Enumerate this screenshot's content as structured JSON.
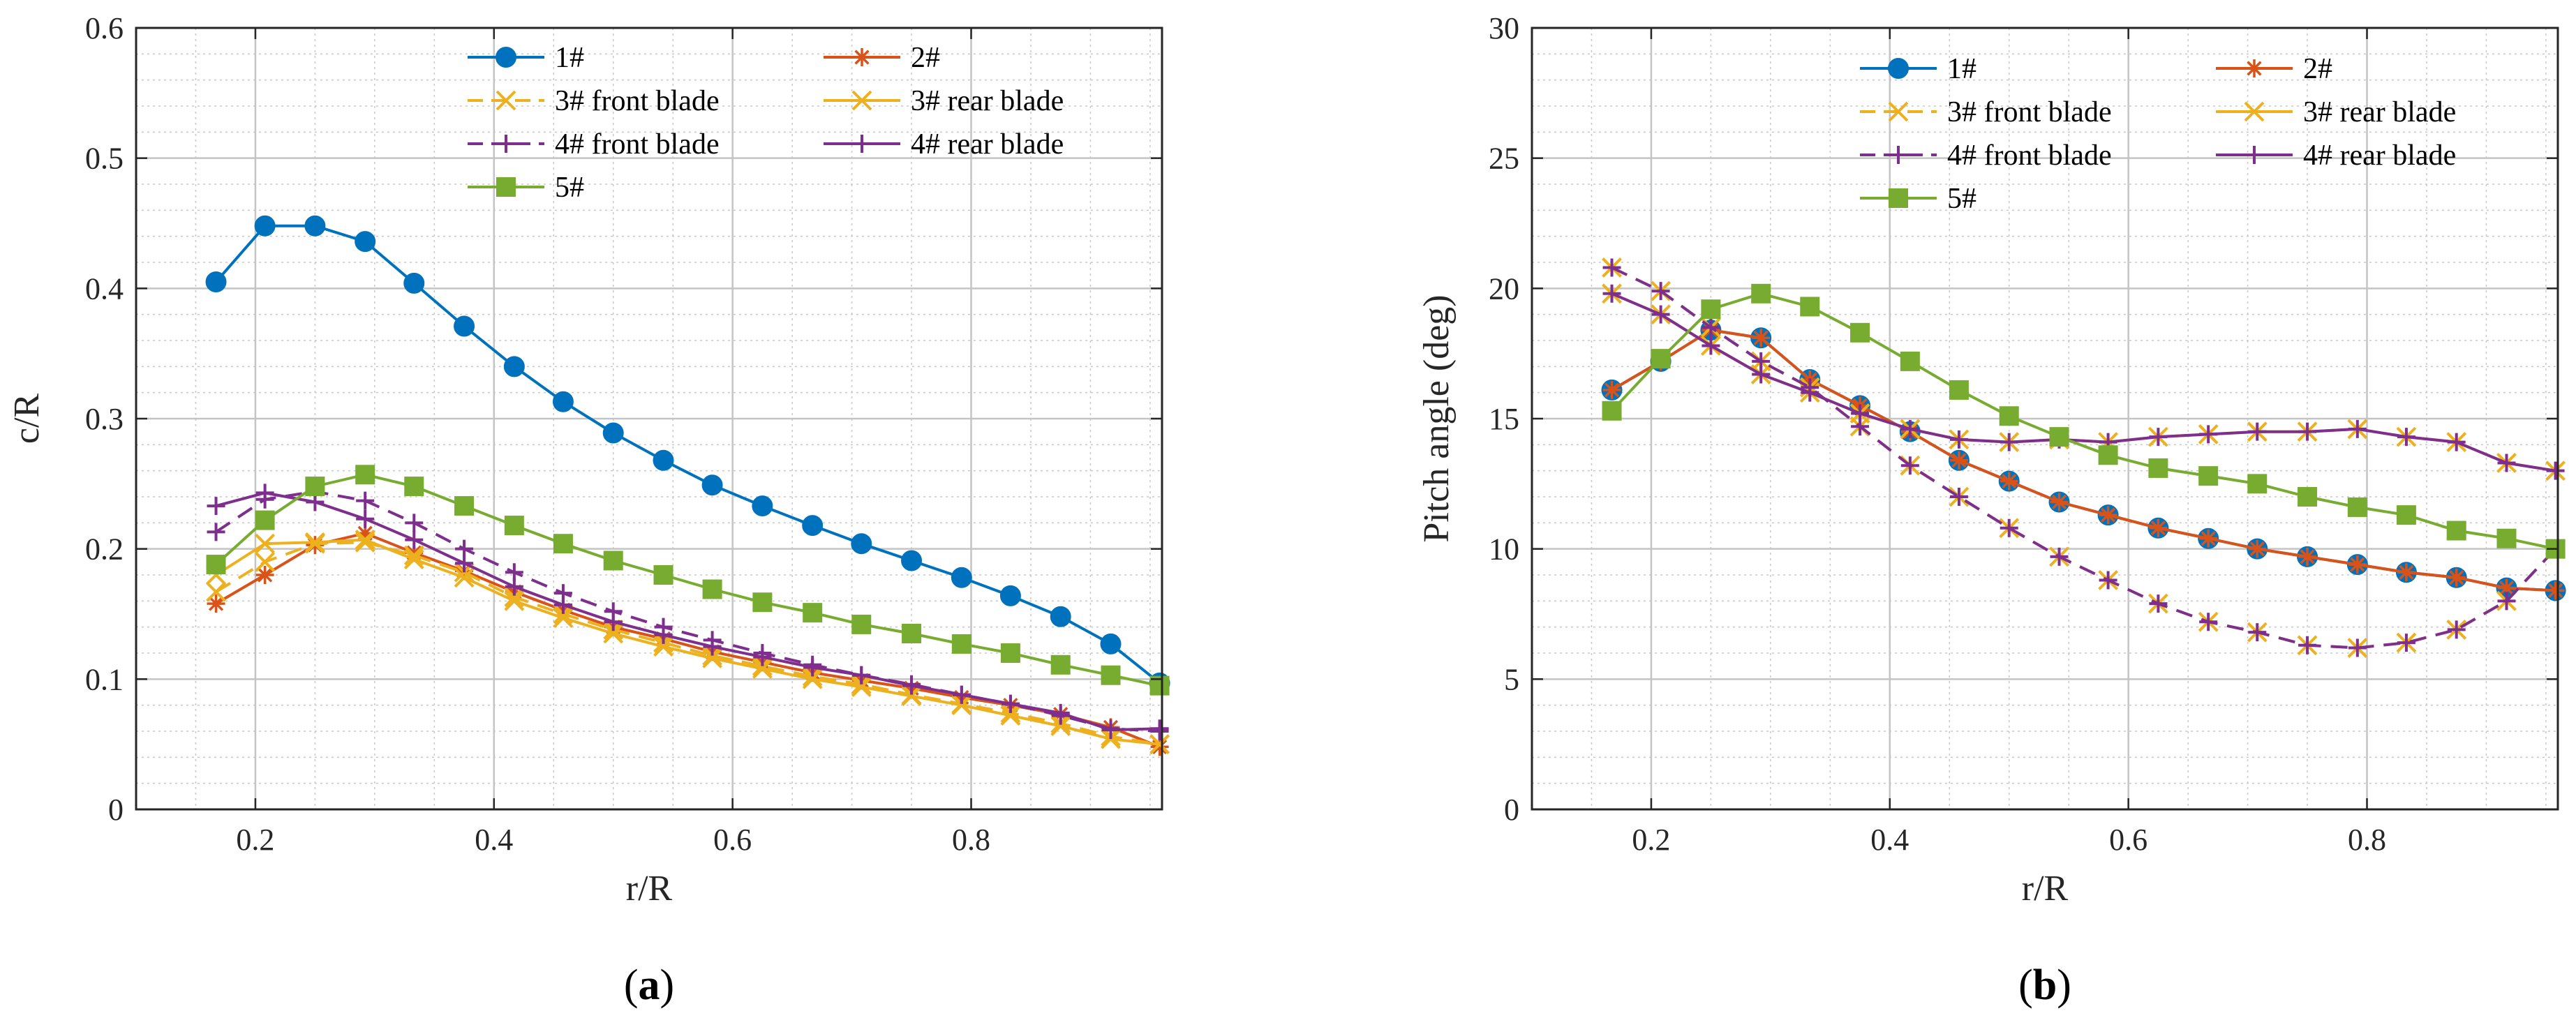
{
  "chart_data": [
    {
      "type": "line",
      "panel_label": "(a)",
      "xlabel": "r/R",
      "ylabel": "c/R",
      "xlim": [
        0.1,
        0.96
      ],
      "ylim": [
        0,
        0.6
      ],
      "xticks": [
        0.2,
        0.4,
        0.6,
        0.8
      ],
      "xtick_labels": [
        "0.2",
        "0.4",
        "0.6",
        "0.8"
      ],
      "yticks": [
        0,
        0.1,
        0.2,
        0.3,
        0.4,
        0.5,
        0.6
      ],
      "ytick_labels": [
        "0",
        "0.1",
        "0.2",
        "0.3",
        "0.4",
        "0.5",
        "0.6"
      ],
      "grid": "major and minor",
      "legend_placement": "top-right, two columns",
      "x": [
        0.167,
        0.208,
        0.25,
        0.292,
        0.333,
        0.375,
        0.417,
        0.458,
        0.5,
        0.542,
        0.583,
        0.625,
        0.667,
        0.708,
        0.75,
        0.792,
        0.833,
        0.875,
        0.917,
        0.958
      ],
      "series": [
        {
          "name": "1#",
          "color": "#0072BD",
          "marker": "circle",
          "dash": "solid",
          "values": [
            0.405,
            0.448,
            0.448,
            0.436,
            0.404,
            0.371,
            0.34,
            0.313,
            0.289,
            0.268,
            0.249,
            0.233,
            0.218,
            0.204,
            0.191,
            0.178,
            0.164,
            0.148,
            0.127,
            0.097
          ]
        },
        {
          "name": "2#",
          "color": "#D95319",
          "marker": "star",
          "dash": "solid",
          "values": [
            0.158,
            0.18,
            0.203,
            0.212,
            0.197,
            0.183,
            0.167,
            0.153,
            0.14,
            0.131,
            0.121,
            0.113,
            0.105,
            0.099,
            0.093,
            0.086,
            0.08,
            0.073,
            0.063,
            0.048
          ]
        },
        {
          "name": "3# front blade",
          "color": "#EDB120",
          "marker": "x",
          "dash": "dashed",
          "values": [
            0.167,
            0.19,
            0.204,
            0.205,
            0.195,
            0.182,
            0.163,
            0.15,
            0.138,
            0.128,
            0.118,
            0.11,
            0.102,
            0.096,
            0.088,
            0.081,
            0.074,
            0.066,
            0.056,
            0.05
          ]
        },
        {
          "name": "3# rear blade",
          "color": "#EDB120",
          "marker": "x",
          "dash": "solid",
          "values": [
            0.18,
            0.204,
            0.205,
            0.207,
            0.192,
            0.178,
            0.16,
            0.147,
            0.135,
            0.125,
            0.116,
            0.108,
            0.1,
            0.094,
            0.087,
            0.08,
            0.072,
            0.064,
            0.054,
            0.05
          ]
        },
        {
          "name": "4# front blade",
          "color": "#7E2F8E",
          "marker": "plus",
          "dash": "dashed",
          "values": [
            0.213,
            0.238,
            0.244,
            0.237,
            0.22,
            0.2,
            0.182,
            0.166,
            0.152,
            0.14,
            0.13,
            0.12,
            0.111,
            0.103,
            0.096,
            0.088,
            0.081,
            0.072,
            0.062,
            0.06
          ]
        },
        {
          "name": "4# rear blade",
          "color": "#7E2F8E",
          "marker": "plus",
          "dash": "solid",
          "values": [
            0.233,
            0.243,
            0.236,
            0.223,
            0.207,
            0.189,
            0.171,
            0.157,
            0.144,
            0.134,
            0.125,
            0.117,
            0.109,
            0.103,
            0.095,
            0.088,
            0.081,
            0.074,
            0.061,
            0.062
          ]
        },
        {
          "name": "5#",
          "color": "#77AC30",
          "marker": "square",
          "dash": "solid",
          "values": [
            0.188,
            0.222,
            0.248,
            0.257,
            0.248,
            0.233,
            0.218,
            0.204,
            0.191,
            0.18,
            0.169,
            0.159,
            0.151,
            0.142,
            0.135,
            0.127,
            0.12,
            0.111,
            0.103,
            0.095
          ]
        }
      ]
    },
    {
      "type": "line",
      "panel_label": "(b)",
      "xlabel": "r/R",
      "ylabel": "Pitch angle (deg)",
      "xlim": [
        0.1,
        0.96
      ],
      "ylim": [
        0,
        30
      ],
      "xticks": [
        0.2,
        0.4,
        0.6,
        0.8
      ],
      "xtick_labels": [
        "0.2",
        "0.4",
        "0.6",
        "0.8"
      ],
      "yticks": [
        0,
        5,
        10,
        15,
        20,
        25,
        30
      ],
      "ytick_labels": [
        "0",
        "5",
        "10",
        "15",
        "20",
        "25",
        "30"
      ],
      "grid": "major and minor",
      "legend_placement": "top-right, two columns",
      "x": [
        0.167,
        0.208,
        0.25,
        0.292,
        0.333,
        0.375,
        0.417,
        0.458,
        0.5,
        0.542,
        0.583,
        0.625,
        0.667,
        0.708,
        0.75,
        0.792,
        0.833,
        0.875,
        0.917,
        0.958
      ],
      "series": [
        {
          "name": "1#",
          "color": "#0072BD",
          "marker": "circle",
          "dash": "solid",
          "values": [
            16.1,
            17.2,
            18.4,
            18.1,
            16.5,
            15.5,
            14.5,
            13.4,
            12.6,
            11.8,
            11.3,
            10.8,
            10.4,
            10.0,
            9.7,
            9.4,
            9.1,
            8.9,
            8.5,
            8.4
          ]
        },
        {
          "name": "2#",
          "color": "#D95319",
          "marker": "star",
          "dash": "solid",
          "values": [
            16.1,
            17.2,
            18.4,
            18.1,
            16.5,
            15.5,
            14.5,
            13.4,
            12.6,
            11.8,
            11.3,
            10.8,
            10.4,
            10.0,
            9.7,
            9.4,
            9.1,
            8.9,
            8.5,
            8.4
          ]
        },
        {
          "name": "3# front blade",
          "color": "#EDB120",
          "marker": "x",
          "dash": "dashed",
          "values": [
            20.8,
            19.9,
            18.5,
            17.2,
            16.2,
            14.7,
            13.2,
            12.0,
            10.8,
            9.7,
            8.8,
            7.9,
            7.2,
            6.8,
            6.3,
            6.2,
            6.4,
            6.9,
            8.0,
            10.0
          ]
        },
        {
          "name": "3# rear blade",
          "color": "#EDB120",
          "marker": "x",
          "dash": "solid",
          "values": [
            19.8,
            19.0,
            17.8,
            16.7,
            16.0,
            15.2,
            14.6,
            14.2,
            14.1,
            14.2,
            14.1,
            14.3,
            14.4,
            14.5,
            14.5,
            14.6,
            14.3,
            14.1,
            13.3,
            13.0
          ]
        },
        {
          "name": "4# front blade",
          "color": "#7E2F8E",
          "marker": "plus",
          "dash": "dashed",
          "values": [
            20.8,
            19.9,
            18.5,
            17.2,
            16.2,
            14.7,
            13.2,
            12.0,
            10.8,
            9.7,
            8.8,
            7.9,
            7.2,
            6.8,
            6.3,
            6.2,
            6.4,
            6.9,
            8.0,
            10.0
          ]
        },
        {
          "name": "4# rear blade",
          "color": "#7E2F8E",
          "marker": "plus",
          "dash": "solid",
          "values": [
            19.8,
            19.0,
            17.8,
            16.7,
            16.0,
            15.2,
            14.6,
            14.2,
            14.1,
            14.2,
            14.1,
            14.3,
            14.4,
            14.5,
            14.5,
            14.6,
            14.3,
            14.1,
            13.3,
            13.0
          ]
        },
        {
          "name": "5#",
          "color": "#77AC30",
          "marker": "square",
          "dash": "solid",
          "values": [
            15.3,
            17.3,
            19.2,
            19.8,
            19.3,
            18.3,
            17.2,
            16.1,
            15.1,
            14.3,
            13.6,
            13.1,
            12.8,
            12.5,
            12.0,
            11.6,
            11.3,
            10.7,
            10.4,
            10.0
          ]
        }
      ]
    }
  ]
}
